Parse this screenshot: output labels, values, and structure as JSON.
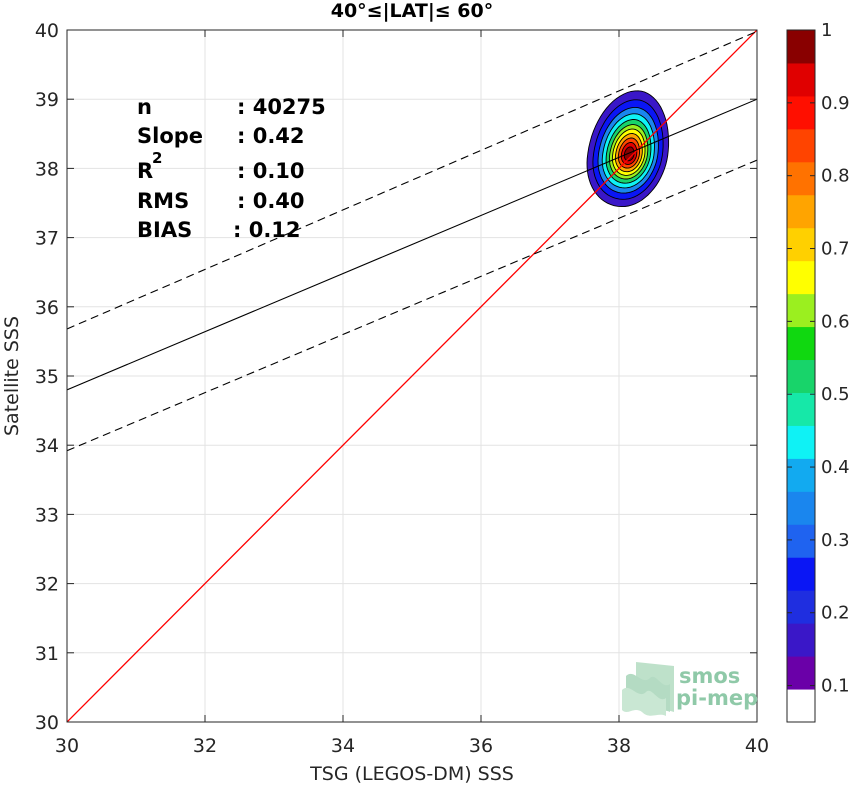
{
  "chart_data": {
    "type": "heatmap",
    "title": "40°≤|LAT|≤ 60°",
    "xlabel": "TSG (LEGOS-DM) SSS",
    "ylabel": "Satellite SSS",
    "xlim": [
      30,
      40
    ],
    "ylim": [
      30,
      40
    ],
    "xticks": [
      "30",
      "32",
      "34",
      "36",
      "38",
      "40"
    ],
    "yticks": [
      "30",
      "31",
      "32",
      "33",
      "34",
      "35",
      "36",
      "37",
      "38",
      "39",
      "40"
    ],
    "grid": true,
    "stats": {
      "n_label": "n",
      "n_value": ": 40275",
      "slope_label": "Slope",
      "slope_value": ": 0.42",
      "r2_label": "R",
      "r2_sup": "2",
      "r2_value": ": 0.10",
      "rms_label": "RMS",
      "rms_value": ": 0.40",
      "bias_label": "BIAS",
      "bias_value": ": 0.12"
    },
    "identity_line": {
      "color": "#ff0000",
      "points": [
        [
          30,
          30
        ],
        [
          40,
          40
        ]
      ]
    },
    "regression_line": {
      "color": "#000000",
      "points": [
        [
          30,
          34.8
        ],
        [
          40,
          39.0
        ]
      ]
    },
    "rms_bounds": [
      {
        "style": "dashed",
        "points": [
          [
            30,
            35.68
          ],
          [
            40,
            39.98
          ]
        ]
      },
      {
        "style": "dashed",
        "points": [
          [
            30,
            33.92
          ],
          [
            40,
            38.12
          ]
        ]
      }
    ],
    "density": {
      "center": [
        38.15,
        38.2
      ],
      "outer_extent_x": [
        37.5,
        38.75
      ],
      "outer_extent_y": [
        37.45,
        39.12
      ],
      "peak": 1.0
    },
    "colorbar": {
      "ticks": [
        "0.1",
        "0.2",
        "0.3",
        "0.4",
        "0.5",
        "0.6",
        "0.7",
        "0.8",
        "0.9",
        "1"
      ],
      "tick_values": [
        0.1,
        0.2,
        0.3,
        0.4,
        0.5,
        0.6,
        0.7,
        0.8,
        0.9,
        1.0
      ],
      "colors": [
        "#ffffff",
        "#6a00a8",
        "#3a17c8",
        "#1f2ee0",
        "#0a16f5",
        "#1f63f0",
        "#1a86ee",
        "#12aaf0",
        "#0ff2f5",
        "#16e8a8",
        "#18d46a",
        "#10d810",
        "#9bef1f",
        "#ffff00",
        "#ffd000",
        "#ffa400",
        "#ff7200",
        "#ff4400",
        "#ff0f00",
        "#e00000",
        "#890000"
      ]
    }
  },
  "watermark": {
    "line1": "smos",
    "line2": "pi-mep"
  }
}
